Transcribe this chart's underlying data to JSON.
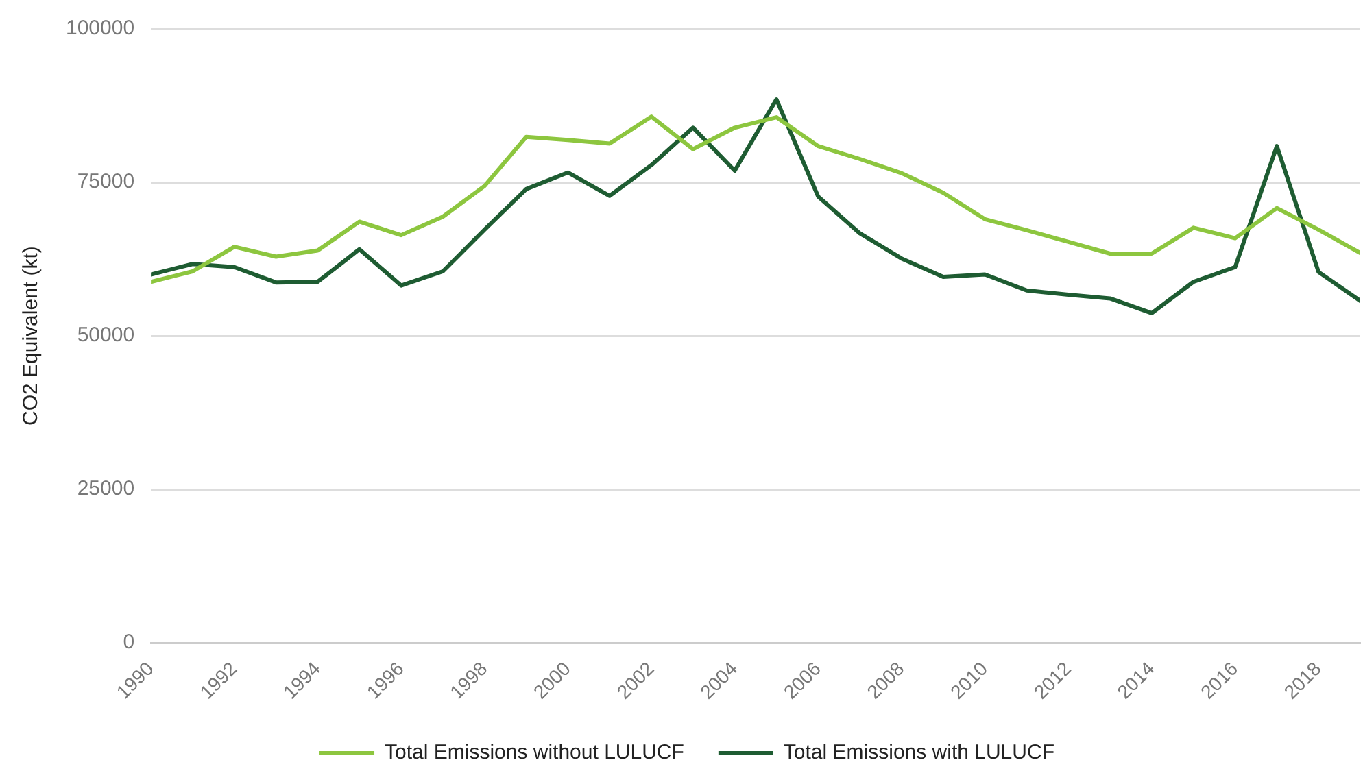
{
  "chart_data": {
    "type": "line",
    "ylabel": "CO2 Equivalent (kt)",
    "x": [
      1990,
      1991,
      1992,
      1993,
      1994,
      1995,
      1996,
      1997,
      1998,
      1999,
      2000,
      2001,
      2002,
      2003,
      2004,
      2005,
      2006,
      2007,
      2008,
      2009,
      2010,
      2011,
      2012,
      2013,
      2014,
      2015,
      2016,
      2017,
      2018,
      2019
    ],
    "series": [
      {
        "name": "Total Emissions without LULUCF",
        "color": "#8dc63f",
        "values": [
          58800,
          60500,
          64500,
          62900,
          63900,
          68600,
          66400,
          69400,
          74400,
          82400,
          81900,
          81300,
          85700,
          80400,
          83900,
          85600,
          80900,
          78800,
          76500,
          73300,
          69000,
          67200,
          65300,
          63400,
          63400,
          67600,
          65900,
          70800,
          67300,
          63500
        ]
      },
      {
        "name": "Total Emissions with LULUCF",
        "color": "#1e5c32",
        "values": [
          60000,
          61700,
          61200,
          58700,
          58800,
          64100,
          58200,
          60500,
          67300,
          73900,
          76600,
          72800,
          77800,
          83900,
          76900,
          88500,
          72700,
          66700,
          62600,
          59600,
          60000,
          57400,
          56700,
          56100,
          53700,
          58800,
          61200,
          80900,
          60400,
          55700
        ]
      }
    ],
    "xlim": [
      1990,
      2019
    ],
    "xticks": [
      1990,
      1992,
      1994,
      1996,
      1998,
      2000,
      2002,
      2004,
      2006,
      2008,
      2010,
      2012,
      2014,
      2016,
      2018
    ],
    "ylim": [
      0,
      100000
    ],
    "yticks": [
      0,
      25000,
      50000,
      75000,
      100000
    ],
    "grid": "y",
    "legend": "bottom",
    "marker": "none",
    "line_style": "solid"
  }
}
